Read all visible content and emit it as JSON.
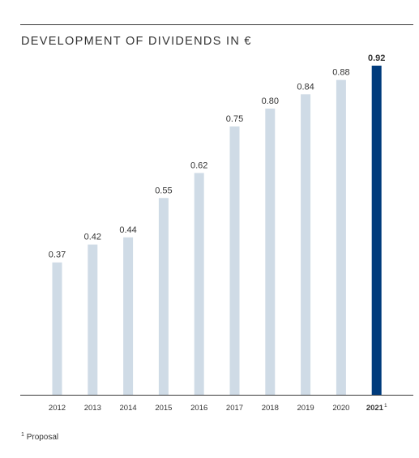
{
  "title": "DEVELOPMENT OF DIVIDENDS IN €",
  "footnote": {
    "marker": "1",
    "text": "Proposal"
  },
  "colors": {
    "bar": "#cfdbe6",
    "highlight_bar": "#003b7c",
    "axis": "#3a3a3a",
    "text": "#333333"
  },
  "chart_data": {
    "type": "bar",
    "title": "DEVELOPMENT OF DIVIDENDS IN €",
    "xlabel": "",
    "ylabel": "",
    "ylim": [
      0,
      0.92
    ],
    "grid": false,
    "categories": [
      "2012",
      "2013",
      "2014",
      "2015",
      "2016",
      "2017",
      "2018",
      "2019",
      "2020",
      "2021"
    ],
    "category_superscripts": [
      "",
      "",
      "",
      "",
      "",
      "",
      "",
      "",
      "",
      "1"
    ],
    "values": [
      0.37,
      0.42,
      0.44,
      0.55,
      0.62,
      0.75,
      0.8,
      0.84,
      0.88,
      0.92
    ],
    "value_labels": [
      "0.37",
      "0.42",
      "0.44",
      "0.55",
      "0.62",
      "0.75",
      "0.80",
      "0.84",
      "0.88",
      "0.92"
    ],
    "highlight_index": 9
  }
}
